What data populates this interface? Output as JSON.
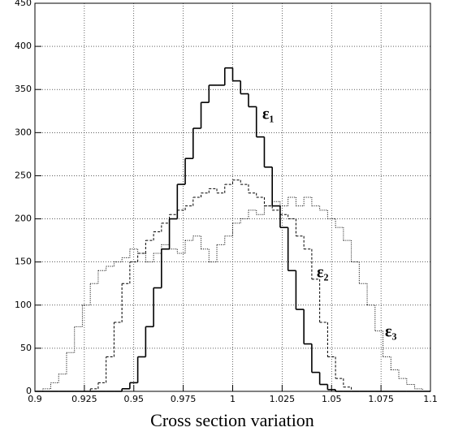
{
  "chart_data": {
    "type": "histogram",
    "xlabel": "Cross section variation",
    "bins": [
      0.9,
      0.904,
      0.908,
      0.912,
      0.916,
      0.92,
      0.924,
      0.928,
      0.932,
      0.936,
      0.94,
      0.944,
      0.948,
      0.952,
      0.956,
      0.96,
      0.964,
      0.968,
      0.972,
      0.976,
      0.98,
      0.984,
      0.988,
      0.992,
      0.996,
      1.0,
      1.004,
      1.008,
      1.012,
      1.016,
      1.02,
      1.024,
      1.028,
      1.032,
      1.036,
      1.04,
      1.044,
      1.048,
      1.052,
      1.056,
      1.06,
      1.064,
      1.068,
      1.072,
      1.076,
      1.08,
      1.084,
      1.088,
      1.092,
      1.096,
      1.1
    ],
    "series": [
      {
        "name": "ε₁",
        "color": "#000000",
        "style": "solid",
        "values": [
          0,
          0,
          0,
          0,
          0,
          0,
          0,
          0,
          0,
          0,
          0,
          3,
          10,
          40,
          75,
          120,
          165,
          200,
          240,
          270,
          305,
          335,
          355,
          355,
          375,
          360,
          345,
          330,
          295,
          260,
          215,
          190,
          140,
          95,
          55,
          22,
          8,
          2,
          0,
          0,
          0,
          0,
          0,
          0,
          0,
          0,
          0,
          0,
          0,
          0
        ]
      },
      {
        "name": "ε₂",
        "color": "#000000",
        "style": "dashed",
        "values": [
          0,
          0,
          0,
          0,
          0,
          0,
          0,
          3,
          10,
          40,
          80,
          125,
          150,
          160,
          175,
          185,
          195,
          205,
          210,
          215,
          225,
          230,
          235,
          230,
          240,
          245,
          240,
          230,
          225,
          215,
          210,
          205,
          200,
          180,
          165,
          130,
          80,
          40,
          15,
          5,
          0,
          0,
          0,
          0,
          0,
          0,
          0,
          0,
          0,
          0
        ]
      },
      {
        "name": "ε₃",
        "color": "#000000",
        "style": "dotted",
        "values": [
          0,
          3,
          10,
          20,
          45,
          75,
          100,
          125,
          140,
          145,
          150,
          155,
          165,
          160,
          150,
          160,
          170,
          165,
          160,
          175,
          180,
          165,
          150,
          170,
          180,
          195,
          200,
          210,
          205,
          215,
          220,
          215,
          225,
          215,
          225,
          215,
          210,
          200,
          190,
          175,
          150,
          125,
          100,
          70,
          40,
          25,
          15,
          8,
          3,
          0
        ]
      }
    ],
    "xlim": [
      0.9,
      1.1
    ],
    "xticks": [
      0.9,
      0.925,
      0.95,
      0.975,
      1,
      1.025,
      1.05,
      1.075,
      1.1
    ],
    "ylim": [
      0,
      450
    ],
    "yticks": [
      0,
      50,
      100,
      150,
      200,
      250,
      300,
      350,
      400,
      450
    ],
    "grid": true
  }
}
